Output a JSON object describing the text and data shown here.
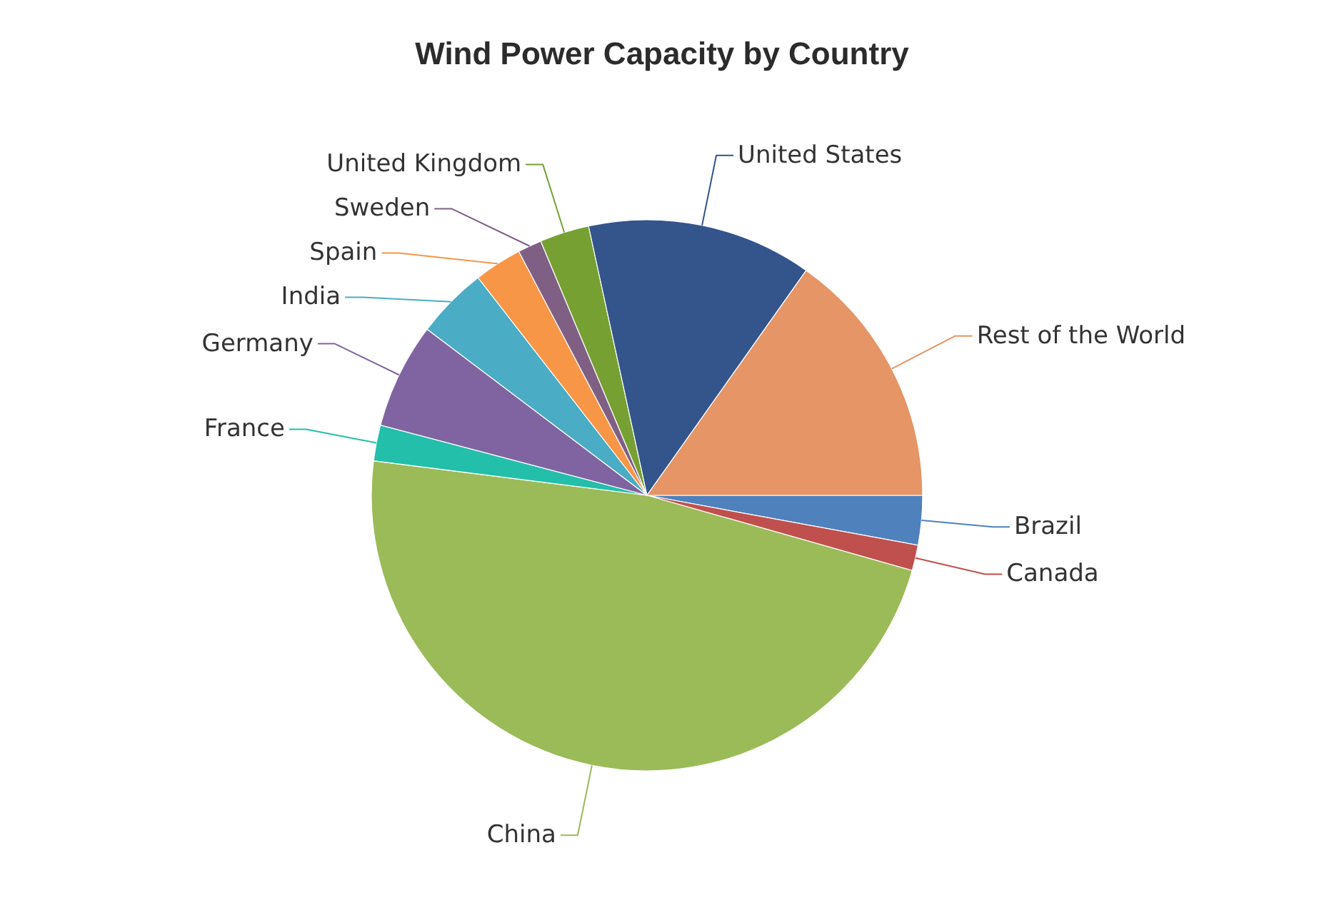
{
  "chart_data": {
    "type": "pie",
    "title": "Wind Power Capacity by Country",
    "categories": [
      "Brazil",
      "Canada",
      "China",
      "France",
      "Germany",
      "India",
      "Spain",
      "Sweden",
      "United Kingdom",
      "United States",
      "Rest of the World"
    ],
    "values": [
      2.9,
      1.5,
      47.6,
      2.1,
      6.2,
      4.2,
      2.8,
      1.4,
      2.9,
      13.2,
      15.2
    ],
    "colors": [
      "#4f81bc",
      "#c0504e",
      "#9bbb58",
      "#23bfaa",
      "#8064a1",
      "#4aacc5",
      "#f79647",
      "#7f6084",
      "#77a033",
      "#33558b",
      "#e59566"
    ]
  }
}
